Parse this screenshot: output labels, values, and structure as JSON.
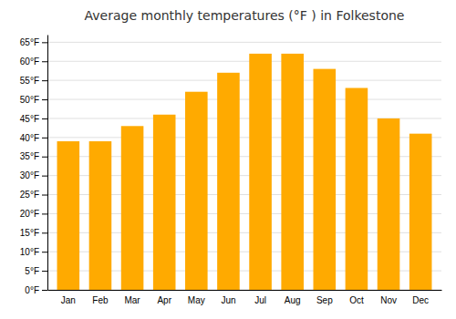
{
  "chart_data": {
    "type": "bar",
    "title": "Average monthly temperatures (°F ) in Folkestone",
    "categories": [
      "Jan",
      "Feb",
      "Mar",
      "Apr",
      "May",
      "Jun",
      "Jul",
      "Aug",
      "Sep",
      "Oct",
      "Nov",
      "Dec"
    ],
    "values": [
      39,
      39,
      43,
      46,
      52,
      57,
      62,
      62,
      58,
      53,
      45,
      41
    ],
    "color": "#FFAA00",
    "ylim": [
      0,
      67
    ],
    "yticks": [
      {
        "value": 0,
        "label": "0°F"
      },
      {
        "value": 5,
        "label": "5°F"
      },
      {
        "value": 10,
        "label": "10°F"
      },
      {
        "value": 15,
        "label": "15°F"
      },
      {
        "value": 20,
        "label": "20°F"
      },
      {
        "value": 25,
        "label": "25°F"
      },
      {
        "value": 30,
        "label": "30°F"
      },
      {
        "value": 35,
        "label": "35°F"
      },
      {
        "value": 40,
        "label": "40°F"
      },
      {
        "value": 45,
        "label": "45°F"
      },
      {
        "value": 50,
        "label": "50°F"
      },
      {
        "value": 55,
        "label": "55°F"
      },
      {
        "value": 60,
        "label": "60°F"
      },
      {
        "value": 65,
        "label": "65°F"
      }
    ],
    "grid": true
  }
}
